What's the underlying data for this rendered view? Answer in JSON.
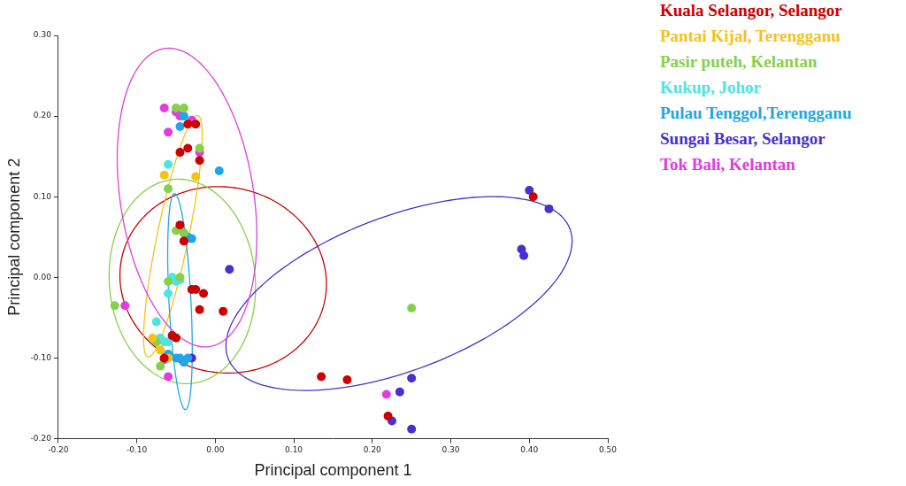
{
  "chart_data": {
    "type": "scatter",
    "x_label": "Principal component 1",
    "y_label": "Principal component 2",
    "xlim": [
      -0.2,
      0.5
    ],
    "xticks": [
      {
        "value": -0.2,
        "label": "-0.20"
      },
      {
        "value": -0.1,
        "label": "-0.10"
      },
      {
        "value": 0,
        "label": "0.00"
      },
      {
        "value": 0.1,
        "label": "0.10"
      },
      {
        "value": 0.2,
        "label": "0.20"
      },
      {
        "value": 0.3,
        "label": "0.30"
      },
      {
        "value": 0.4,
        "label": "0.40"
      },
      {
        "value": 0.5,
        "label": "0.50"
      }
    ],
    "ylim": [
      -0.2,
      0.3
    ],
    "yticks": [
      {
        "value": -0.2,
        "label": "-0.20"
      },
      {
        "value": -0.1,
        "label": "-0.10"
      },
      {
        "value": 0,
        "label": "0.00"
      },
      {
        "value": 0.1,
        "label": "0.10"
      },
      {
        "value": 0.2,
        "label": "0.20"
      },
      {
        "value": 0.3,
        "label": "0.30"
      }
    ],
    "grid": false,
    "legend": "upper right",
    "marker": "circle",
    "series": [
      {
        "name": "Kuala Selangor, Selangor",
        "color": "#cc0000",
        "x": [
          -0.035,
          -0.025,
          -0.045,
          -0.035,
          -0.02,
          -0.045,
          -0.04,
          -0.03,
          -0.025,
          -0.015,
          -0.02,
          0.01,
          -0.055,
          -0.05,
          0.135,
          0.168,
          0.22,
          0.405,
          -0.065
        ],
        "y": [
          0.19,
          0.19,
          0.155,
          0.16,
          0.145,
          0.065,
          0.045,
          -0.015,
          -0.015,
          -0.02,
          -0.04,
          -0.042,
          -0.072,
          -0.075,
          -0.123,
          -0.127,
          -0.172,
          0.1,
          -0.1
        ],
        "ellipse": {
          "center": [
            0.01,
            -0.003
          ],
          "semi_axes": [
            0.132,
            0.115
          ],
          "angle": -10
        }
      },
      {
        "name": "Pantai Kijal, Terengganu",
        "color": "#f5c21b",
        "x": [
          -0.065,
          -0.025,
          -0.08,
          -0.07,
          -0.06
        ],
        "y": [
          0.127,
          0.125,
          -0.075,
          -0.09,
          -0.1
        ],
        "ellipse": {
          "center": [
            -0.054,
            0.051
          ],
          "semi_axes": [
            0.153,
            0.02
          ],
          "angle": 78
        }
      },
      {
        "name": "Pasir puteh, Kelantan",
        "color": "#86d04a",
        "x": [
          -0.05,
          -0.04,
          -0.02,
          -0.06,
          -0.05,
          -0.04,
          -0.128,
          -0.06,
          -0.075,
          -0.07,
          -0.065,
          0.25,
          -0.045
        ],
        "y": [
          0.21,
          0.21,
          0.16,
          0.11,
          0.058,
          0.055,
          -0.035,
          -0.005,
          -0.08,
          -0.11,
          -0.1,
          -0.038,
          0.0
        ],
        "ellipse": {
          "center": [
            -0.042,
            -0.005
          ],
          "semi_axes": [
            0.127,
            0.093
          ],
          "angle": 95
        }
      },
      {
        "name": "Kukup, Johor",
        "color": "#4fe3e3",
        "x": [
          -0.06,
          -0.055,
          -0.05,
          -0.045,
          -0.06,
          -0.075,
          -0.07,
          -0.065,
          -0.06
        ],
        "y": [
          0.14,
          0.0,
          -0.005,
          -0.003,
          -0.02,
          -0.055,
          -0.075,
          -0.08,
          -0.08
        ]
      },
      {
        "name": "Pulau Tenggol,Terengganu",
        "color": "#1ea7e8",
        "x": [
          -0.045,
          -0.04,
          0.005,
          -0.035,
          -0.03,
          -0.04,
          -0.05,
          -0.045,
          -0.04,
          -0.035,
          -0.06
        ],
        "y": [
          0.187,
          0.2,
          0.132,
          0.05,
          0.048,
          0.055,
          -0.1,
          -0.1,
          -0.105,
          -0.1,
          -0.095
        ],
        "ellipse": {
          "center": [
            -0.045,
            -0.03
          ],
          "semi_axes": [
            0.134,
            0.014
          ],
          "angle": 93
        }
      },
      {
        "name": "Sungai Besar, Selangor",
        "color": "#4a2fd0",
        "x": [
          0.4,
          0.425,
          0.39,
          0.393,
          0.018,
          0.25,
          0.235,
          0.225,
          0.25,
          -0.04,
          -0.03
        ],
        "y": [
          0.108,
          0.085,
          0.035,
          0.027,
          0.01,
          -0.125,
          -0.142,
          -0.178,
          -0.188,
          -0.105,
          -0.1
        ],
        "ellipse": {
          "center": [
            0.234,
            -0.02
          ],
          "semi_axes": [
            0.232,
            0.096
          ],
          "angle": 20
        }
      },
      {
        "name": "Tok Bali, Kelantan",
        "color": "#e03ce0",
        "x": [
          -0.065,
          -0.05,
          -0.045,
          -0.06,
          -0.03,
          -0.02,
          -0.115,
          -0.065,
          -0.06,
          0.218
        ],
        "y": [
          0.21,
          0.205,
          0.2,
          0.18,
          0.195,
          0.155,
          -0.035,
          -0.102,
          -0.123,
          -0.145
        ],
        "ellipse": {
          "center": [
            -0.036,
            0.099
          ],
          "semi_axes": [
            0.187,
            0.085
          ],
          "angle": 99
        }
      }
    ]
  }
}
